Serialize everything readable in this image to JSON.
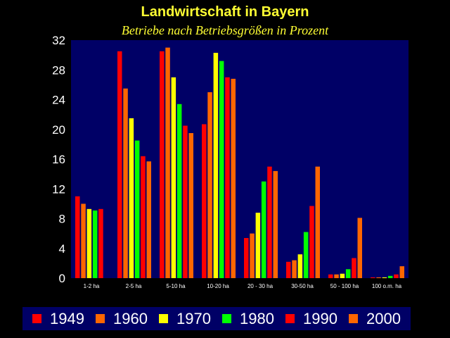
{
  "title": "Landwirtschaft in Bayern",
  "subtitle": "Betriebe nach Betriebsgrößen in Prozent",
  "chart_data": {
    "type": "bar",
    "title": "Landwirtschaft in Bayern",
    "subtitle": "Betriebe nach Betriebsgrößen in Prozent",
    "xlabel": "",
    "ylabel": "",
    "ylim": [
      0,
      32
    ],
    "yticks": [
      "0",
      "4",
      "8",
      "12",
      "16",
      "20",
      "24",
      "28",
      "32"
    ],
    "grid": false,
    "legend_position": "bottom",
    "plot_background": "#000066",
    "categories": [
      "1-2 ha",
      "2-5 ha",
      "5-10 ha",
      "10-20 ha",
      "20 - 30 ha",
      "30-50 ha",
      "50 - 100 ha",
      "100 o.m. ha"
    ],
    "series": [
      {
        "name": "1949",
        "color": "#ff0000",
        "values": [
          11.0,
          30.5,
          30.5,
          20.7,
          5.4,
          2.2,
          0.5,
          0.1
        ]
      },
      {
        "name": "1960",
        "color": "#ff6600",
        "values": [
          10.0,
          25.5,
          31.0,
          25.0,
          6.0,
          2.4,
          0.5,
          0.1
        ]
      },
      {
        "name": "1970",
        "color": "#ffff00",
        "values": [
          9.3,
          21.5,
          27.0,
          30.3,
          8.8,
          3.2,
          0.6,
          0.1
        ]
      },
      {
        "name": "1980",
        "color": "#00ff00",
        "values": [
          9.1,
          18.5,
          23.4,
          29.2,
          13.0,
          6.2,
          1.2,
          0.3
        ]
      },
      {
        "name": "1990",
        "color": "#ff0000",
        "values": [
          9.3,
          16.4,
          20.5,
          27.0,
          15.0,
          9.7,
          2.7,
          0.5
        ]
      },
      {
        "name": "2000",
        "color": "#ff6600",
        "values": [
          0,
          15.7,
          19.5,
          26.8,
          14.4,
          15.0,
          8.1,
          1.6
        ]
      }
    ]
  }
}
